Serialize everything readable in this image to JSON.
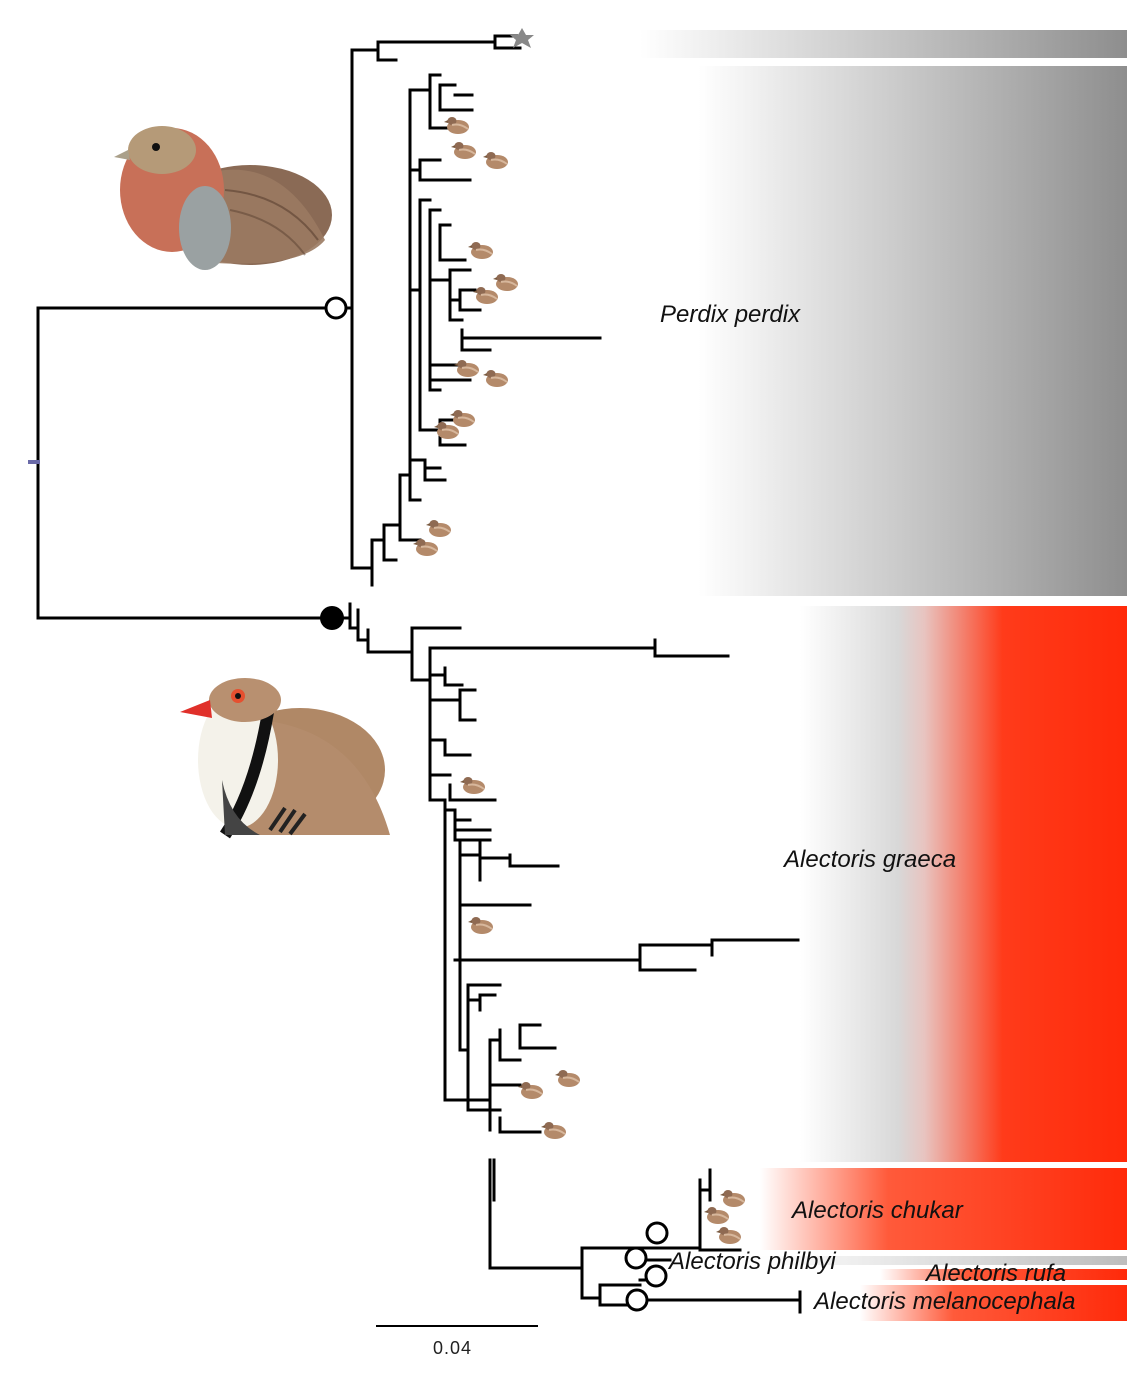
{
  "clades": [
    {
      "label": "Perdix perdix",
      "color": "#8c8c8c"
    },
    {
      "label": "Alectoris graeca",
      "color": "#ff2a0a"
    },
    {
      "label": "Alectoris chukar",
      "color": "#ff2a0a"
    },
    {
      "label": "Alectoris philbyi",
      "color": "#bbbbbb"
    },
    {
      "label": "Alectoris rufa",
      "color": "#ff2a0a"
    },
    {
      "label": "Alectoris melanocephala",
      "color": "#ff2a0a"
    }
  ],
  "scale_bar": {
    "label": "0.04"
  },
  "illustrations": [
    {
      "name": "grey-partridge-illustration"
    },
    {
      "name": "rock-partridge-illustration"
    }
  ],
  "node_markers": {
    "open": "open-circle",
    "filled": "filled-circle"
  }
}
